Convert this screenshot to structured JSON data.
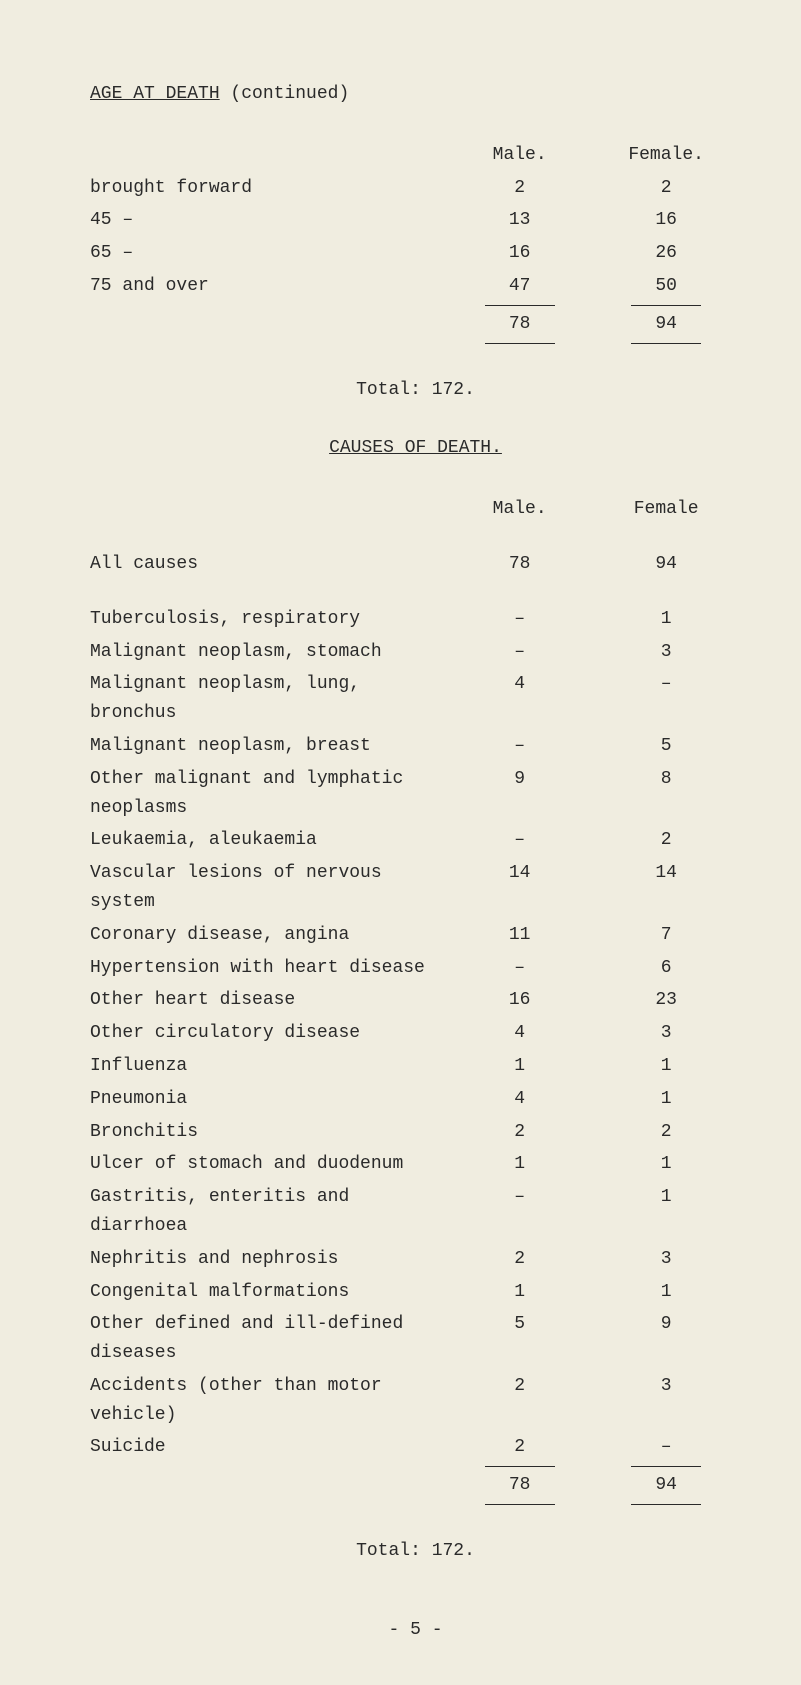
{
  "page": {
    "title": "AGE AT DEATH",
    "title_suffix": " (continued)",
    "headers": {
      "male": "Male.",
      "female": "Female."
    },
    "brought_forward": {
      "label": "brought forward",
      "male": "2",
      "female": "2"
    },
    "age_rows": [
      {
        "label": "45     –",
        "male": "13",
        "female": "16"
      },
      {
        "label": "65     –",
        "male": "16",
        "female": "26"
      },
      {
        "label": "75 and over",
        "male": "47",
        "female": "50"
      }
    ],
    "age_total": {
      "male": "78",
      "female": "94"
    },
    "total_line": "Total: 172.",
    "causes_title": "CAUSES OF DEATH.",
    "causes_headers": {
      "male": "Male.",
      "female": "Female"
    },
    "all_causes": {
      "label": "All causes",
      "male": "78",
      "female": "94"
    },
    "cause_rows": [
      {
        "label": "Tuberculosis, respiratory",
        "male": "–",
        "female": "1"
      },
      {
        "label": "Malignant neoplasm, stomach",
        "male": "–",
        "female": "3"
      },
      {
        "label": "Malignant neoplasm, lung, bronchus",
        "male": "4",
        "female": "–"
      },
      {
        "label": "Malignant neoplasm, breast",
        "male": "–",
        "female": "5"
      },
      {
        "label": "Other malignant and lymphatic neoplasms",
        "male": "9",
        "female": "8"
      },
      {
        "label": "Leukaemia, aleukaemia",
        "male": "–",
        "female": "2"
      },
      {
        "label": "Vascular lesions of nervous system",
        "male": "14",
        "female": "14"
      },
      {
        "label": "Coronary disease, angina",
        "male": "11",
        "female": "7"
      },
      {
        "label": "Hypertension with heart disease",
        "male": "–",
        "female": "6"
      },
      {
        "label": "Other heart disease",
        "male": "16",
        "female": "23"
      },
      {
        "label": "Other circulatory disease",
        "male": "4",
        "female": "3"
      },
      {
        "label": "Influenza",
        "male": "1",
        "female": "1"
      },
      {
        "label": "Pneumonia",
        "male": "4",
        "female": "1"
      },
      {
        "label": "Bronchitis",
        "male": "2",
        "female": "2"
      },
      {
        "label": "Ulcer of stomach and duodenum",
        "male": "1",
        "female": "1"
      },
      {
        "label": "Gastritis, enteritis and diarrhoea",
        "male": "–",
        "female": "1"
      },
      {
        "label": "Nephritis and nephrosis",
        "male": "2",
        "female": "3"
      },
      {
        "label": "Congenital malformations",
        "male": "1",
        "female": "1"
      },
      {
        "label": "Other defined and ill-defined diseases",
        "male": "5",
        "female": "9"
      },
      {
        "label": "Accidents (other than motor vehicle)",
        "male": "2",
        "female": "3"
      },
      {
        "label": "Suicide",
        "male": "2",
        "female": "–"
      }
    ],
    "causes_total": {
      "male": "78",
      "female": "94"
    },
    "causes_total_line": "Total: 172.",
    "page_number": "- 5 -"
  },
  "style": {
    "background_color": "#f0ede0",
    "text_color": "#2a2a2a",
    "font_family": "Courier New",
    "base_fontsize": 18
  }
}
